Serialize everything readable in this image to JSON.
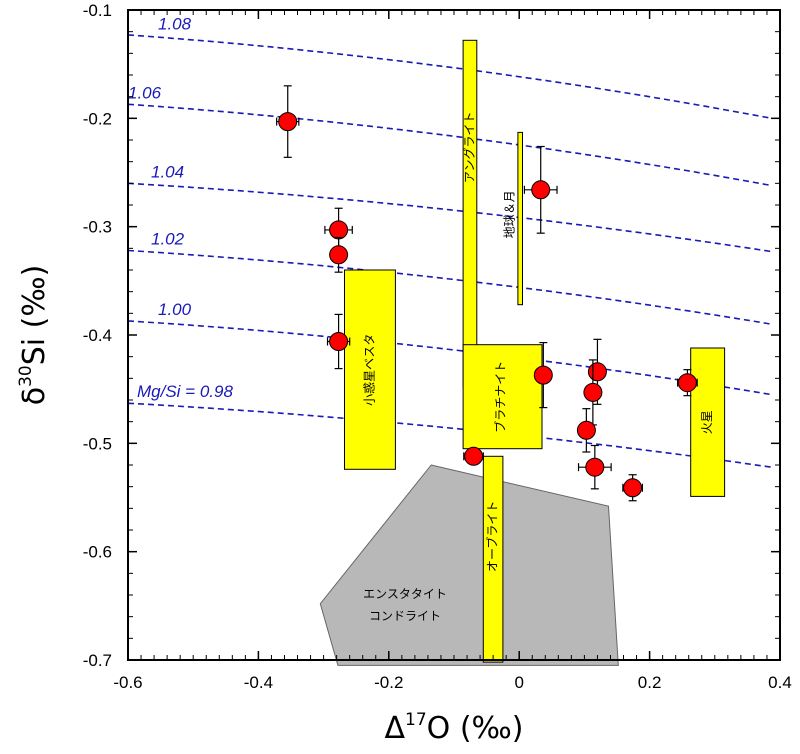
{
  "chart_data": {
    "type": "scatter",
    "xlabel_base": "Δ",
    "xlabel_sup": "17",
    "xlabel_rest": "O (‰)",
    "ylabel_base": "δ",
    "ylabel_sup": "30",
    "ylabel_rest": "Si (‰)",
    "xlim": [
      -0.6,
      0.4
    ],
    "ylim": [
      -0.7,
      -0.1
    ],
    "xticks": [
      "-0.6",
      "-0.4",
      "-0.2",
      "0",
      "0.2",
      "0.4"
    ],
    "xtick_values": [
      -0.6,
      -0.4,
      -0.2,
      0,
      0.2,
      0.4
    ],
    "yticks": [
      "-0.1",
      "-0.2",
      "-0.3",
      "-0.4",
      "-0.5",
      "-0.6",
      "-0.7"
    ],
    "ytick_values": [
      -0.1,
      -0.2,
      -0.3,
      -0.4,
      -0.5,
      -0.6,
      -0.7
    ],
    "points": [
      {
        "x": -0.355,
        "y": -0.203,
        "xerr": 0.017,
        "yerr": 0.033
      },
      {
        "x": -0.277,
        "y": -0.303,
        "xerr": 0.021,
        "yerr": 0.02
      },
      {
        "x": -0.277,
        "y": -0.326,
        "xerr": 0.0,
        "yerr": 0.016
      },
      {
        "x": -0.277,
        "y": -0.406,
        "xerr": 0.017,
        "yerr": 0.025
      },
      {
        "x": 0.033,
        "y": -0.266,
        "xerr": 0.025,
        "yerr": 0.04
      },
      {
        "x": 0.037,
        "y": -0.437,
        "xerr": 0.008,
        "yerr": 0.03
      },
      {
        "x": -0.07,
        "y": -0.512,
        "xerr": 0.015,
        "yerr": 0.0
      },
      {
        "x": 0.12,
        "y": -0.434,
        "xerr": 0.01,
        "yerr": 0.03
      },
      {
        "x": 0.113,
        "y": -0.453,
        "xerr": 0.008,
        "yerr": 0.03
      },
      {
        "x": 0.103,
        "y": -0.488,
        "xerr": 0.012,
        "yerr": 0.02
      },
      {
        "x": 0.116,
        "y": -0.522,
        "xerr": 0.025,
        "yerr": 0.02
      },
      {
        "x": 0.174,
        "y": -0.541,
        "xerr": 0.015,
        "yerr": 0.012
      },
      {
        "x": 0.258,
        "y": -0.444,
        "xerr": 0.015,
        "yerr": 0.012
      }
    ],
    "ratio_curves": [
      {
        "label": "1.08",
        "y_start": -0.123,
        "y_end": -0.2
      },
      {
        "label": "1.06",
        "y_start": -0.187,
        "y_end": -0.262
      },
      {
        "label": "1.04",
        "y_start": -0.26,
        "y_end": -0.323
      },
      {
        "label": "1.02",
        "y_start": -0.322,
        "y_end": -0.39
      },
      {
        "label": "1.00",
        "y_start": -0.387,
        "y_end": -0.455
      },
      {
        "label": "Mg/Si = 0.98",
        "y_start": -0.463,
        "y_end": -0.522
      }
    ],
    "ratio_curve_span_x": [
      -0.6,
      0.387
    ],
    "regions": [
      {
        "label": "アングライト",
        "x0": -0.086,
        "x1": -0.065,
        "y0": -0.448,
        "y1": -0.128
      },
      {
        "label": "地球＆月",
        "x0": -0.002,
        "x1": 0.005,
        "y0": -0.372,
        "y1": -0.213
      },
      {
        "label": "小惑星ベスタ",
        "x0": -0.268,
        "x1": -0.19,
        "y0": -0.524,
        "y1": -0.34
      },
      {
        "label": "ブラチナイト",
        "x0": -0.086,
        "x1": 0.035,
        "y0": -0.505,
        "y1": -0.409
      },
      {
        "label": "火星",
        "x0": 0.263,
        "x1": 0.315,
        "y0": -0.549,
        "y1": -0.412
      },
      {
        "label": "オーブライト",
        "x0": -0.055,
        "x1": -0.025,
        "y0": -0.702,
        "y1": -0.512
      }
    ],
    "polygon": {
      "label_line1": "エンスタタイト",
      "label_line2": "コンドライト",
      "vertices": [
        [
          -0.135,
          -0.52
        ],
        [
          0.137,
          -0.558
        ],
        [
          0.152,
          -0.705
        ],
        [
          -0.278,
          -0.705
        ],
        [
          -0.305,
          -0.648
        ]
      ]
    },
    "colors": {
      "marker_fill": "#ff0000",
      "marker_edge": "#000000",
      "region_fill": "#ffff00",
      "polygon_fill": "#b8b8b8",
      "curve_color": "#1a1ab8"
    }
  }
}
